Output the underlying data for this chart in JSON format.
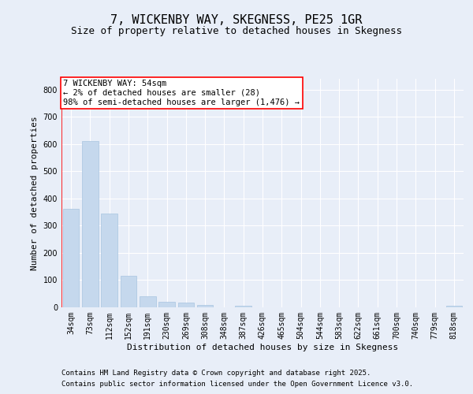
{
  "title": "7, WICKENBY WAY, SKEGNESS, PE25 1GR",
  "subtitle": "Size of property relative to detached houses in Skegness",
  "xlabel": "Distribution of detached houses by size in Skegness",
  "ylabel": "Number of detached properties",
  "categories": [
    "34sqm",
    "73sqm",
    "112sqm",
    "152sqm",
    "191sqm",
    "230sqm",
    "269sqm",
    "308sqm",
    "348sqm",
    "387sqm",
    "426sqm",
    "465sqm",
    "504sqm",
    "544sqm",
    "583sqm",
    "622sqm",
    "661sqm",
    "700sqm",
    "740sqm",
    "779sqm",
    "818sqm"
  ],
  "values": [
    362,
    612,
    345,
    116,
    42,
    20,
    17,
    9,
    0,
    7,
    0,
    0,
    0,
    0,
    0,
    0,
    0,
    0,
    0,
    0,
    7
  ],
  "bar_color": "#c5d8ed",
  "bar_edge_color": "#a8c4e0",
  "ylim": [
    0,
    840
  ],
  "yticks": [
    0,
    100,
    200,
    300,
    400,
    500,
    600,
    700,
    800
  ],
  "annotation_box_text": "7 WICKENBY WAY: 54sqm\n← 2% of detached houses are smaller (28)\n98% of semi-detached houses are larger (1,476) →",
  "vline_color": "red",
  "footer_line1": "Contains HM Land Registry data © Crown copyright and database right 2025.",
  "footer_line2": "Contains public sector information licensed under the Open Government Licence v3.0.",
  "bg_color": "#e8eef8",
  "plot_bg_color": "#e8eef8",
  "grid_color": "#ffffff",
  "title_fontsize": 11,
  "subtitle_fontsize": 9,
  "axis_label_fontsize": 8,
  "tick_fontsize": 7,
  "footer_fontsize": 6.5,
  "annotation_fontsize": 7.5
}
